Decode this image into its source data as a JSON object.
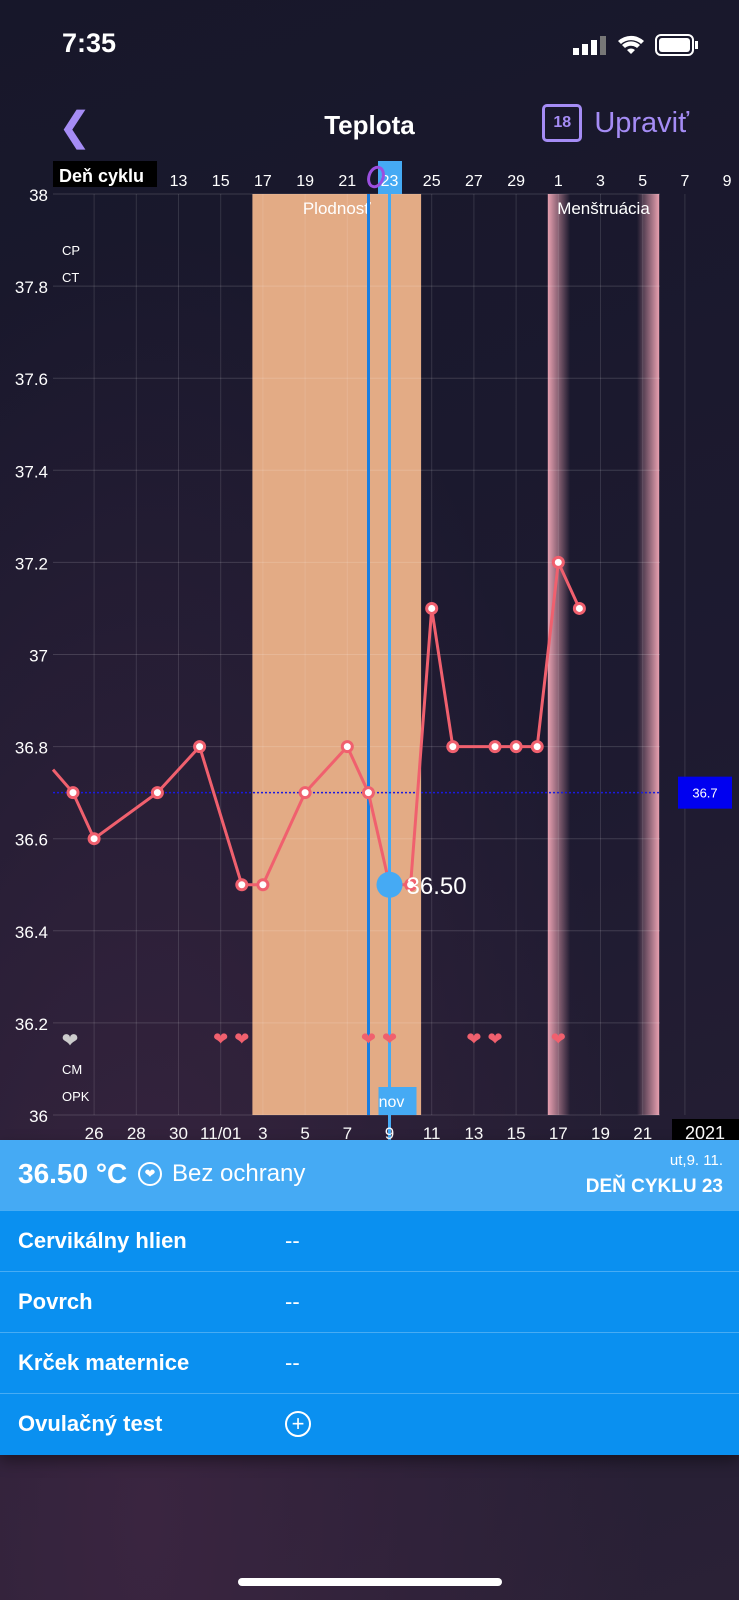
{
  "status": {
    "time": "7:35"
  },
  "header": {
    "title": "Teplota",
    "edit_label": "Upraviť",
    "calendar_day": "18"
  },
  "chart_data": {
    "type": "line",
    "year": "2021",
    "ylim": [
      36,
      38
    ],
    "yticks": [
      "36",
      "36.2",
      "36.4",
      "36.6",
      "36.8",
      "37",
      "37.2",
      "37.4",
      "37.6",
      "37.8",
      "38"
    ],
    "top_axis_title": "Deň cyklu",
    "top_ticks": [
      "13",
      "15",
      "17",
      "19",
      "21",
      "23",
      "25",
      "27",
      "29",
      "1",
      "3",
      "5",
      "7",
      "9"
    ],
    "bottom_ticks": [
      "26",
      "28",
      "30",
      "11/01",
      "3",
      "5",
      "7",
      "9",
      "11",
      "13",
      "15",
      "17",
      "19",
      "21"
    ],
    "selected": {
      "date": "2021-11-09",
      "value": 36.5,
      "label": "36.50",
      "month_label": "nov",
      "cycle_day": "23"
    },
    "coverline": {
      "value": 36.7,
      "label": "36.7"
    },
    "row_labels_top": [
      "CP",
      "CT"
    ],
    "row_labels_bottom": [
      "CM",
      "OPK"
    ],
    "bands": [
      {
        "label": "Plodnosť",
        "from": "2021-11-03",
        "to": "2021-11-10",
        "color": "#e3ab85"
      },
      {
        "label": "Menštruácia",
        "from": "2021-11-17",
        "to": "2021-11-21",
        "color": "#e8a0b0"
      }
    ],
    "series": [
      {
        "color": "#f0606e",
        "points": [
          [
            "2021-10-24",
            36.75
          ],
          [
            "2021-10-25",
            36.7
          ],
          [
            "2021-10-26",
            36.6
          ],
          [
            "2021-10-29",
            36.7
          ],
          [
            "2021-10-31",
            36.8
          ],
          [
            "2021-11-02",
            36.5
          ],
          [
            "2021-11-03",
            36.5
          ],
          [
            "2021-11-05",
            36.7
          ],
          [
            "2021-11-07",
            36.8
          ],
          [
            "2021-11-08",
            36.7
          ],
          [
            "2021-11-09",
            36.5
          ],
          [
            "2021-11-10",
            36.5
          ],
          [
            "2021-11-11",
            37.1
          ],
          [
            "2021-11-12",
            36.8
          ],
          [
            "2021-11-14",
            36.8
          ],
          [
            "2021-11-15",
            36.8
          ],
          [
            "2021-11-16",
            36.8
          ],
          [
            "2021-11-17",
            37.2
          ],
          [
            "2021-11-18",
            37.1
          ]
        ]
      }
    ],
    "hearts": [
      "2021-11-01",
      "2021-11-02",
      "2021-11-08",
      "2021-11-09",
      "2021-11-13",
      "2021-11-14",
      "2021-11-17"
    ],
    "grey_heart": "2021-10-24"
  },
  "panel": {
    "temp": "36.50 °C",
    "protection": "Bez ochrany",
    "date": "ut,9. 11.",
    "cycle_day": "DEŇ CYKLU 23",
    "rows": [
      {
        "label": "Cervikálny hlien",
        "value": "--"
      },
      {
        "label": "Povrch",
        "value": "--"
      },
      {
        "label": "Krček maternice",
        "value": "--"
      },
      {
        "label": "Ovulačný test",
        "value": ""
      }
    ]
  }
}
